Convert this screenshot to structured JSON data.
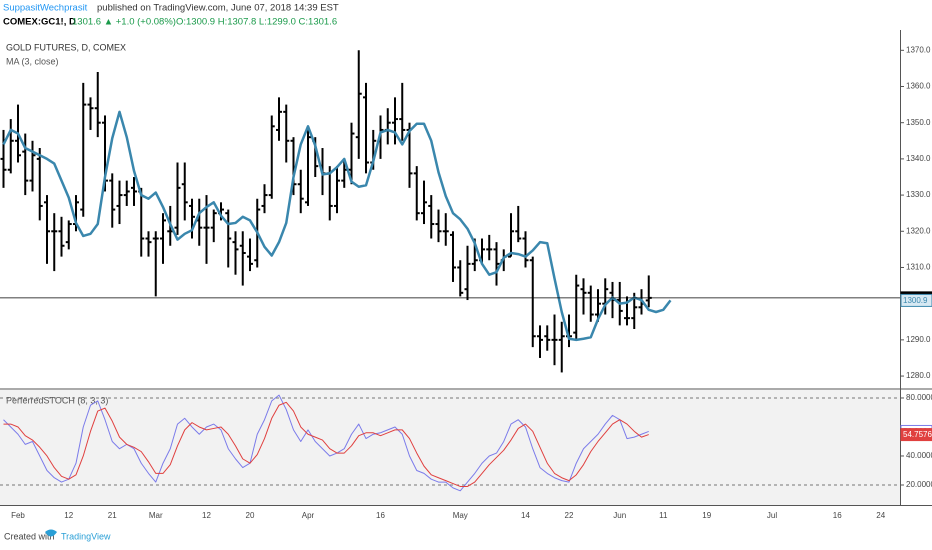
{
  "header": {
    "author": "SuppasitWechprasit",
    "published": "published on TradingView.com, June 07, 2018 14:39 EST",
    "symbol": "COMEX:GC1!, D",
    "change": "1301.6 ▲ +1.0 (+0.08%)",
    "ohlc": "O:1300.9 H:1307.8 L:1299.0 C:1301.6"
  },
  "chart_data": [
    {
      "type": "ohlc",
      "title": "GOLD FUTURES, D, COMEX",
      "color": "#000000",
      "categories": [
        null,
        null,
        "Feb",
        null,
        null,
        null,
        null,
        null,
        null,
        "12",
        null,
        null,
        null,
        null,
        null,
        "21",
        null,
        null,
        null,
        null,
        null,
        "Mar",
        null,
        null,
        null,
        null,
        null,
        null,
        "12",
        null,
        null,
        null,
        null,
        null,
        "20",
        null,
        null,
        null,
        null,
        null,
        null,
        null,
        "Apr",
        null,
        null,
        null,
        null,
        null,
        null,
        null,
        null,
        null,
        "16",
        null,
        null,
        null,
        null,
        null,
        null,
        null,
        null,
        null,
        null,
        "May",
        null,
        null,
        null,
        null,
        null,
        null,
        null,
        null,
        "14",
        null,
        null,
        null,
        null,
        null,
        "22",
        null,
        null,
        null,
        null,
        null,
        null,
        "Jun",
        null,
        null,
        null,
        null,
        null,
        "11",
        null,
        null,
        null,
        null,
        null,
        "19",
        null,
        null,
        null,
        null,
        null,
        null,
        null,
        null,
        "Jul",
        null,
        null,
        null,
        null,
        null,
        null,
        null,
        null,
        "16",
        null,
        null,
        null,
        null,
        null,
        "24"
      ],
      "open": [
        1340,
        1337,
        1345,
        1342,
        1334,
        1340,
        1328,
        1320,
        1320,
        1317,
        1322,
        1326,
        1355,
        1354,
        1350,
        1334,
        1327,
        1330,
        1332,
        1331,
        1318,
        1318,
        1318,
        1320,
        1321,
        1333,
        1327,
        1323,
        1321,
        1321,
        1325,
        1325,
        1317,
        1316,
        1313,
        1312,
        1327,
        1330,
        1348,
        1353,
        1345,
        1333,
        1328,
        1345,
        1338,
        1336,
        1327,
        1334,
        1337,
        1346,
        1357,
        1339,
        1345,
        1348,
        1350,
        1351,
        1348,
        1336,
        1325,
        1327,
        1322,
        1320,
        1319,
        1310,
        1304,
        1311,
        1312,
        1315,
        1315,
        1312,
        1313,
        1320,
        1318,
        1312,
        1291,
        1291,
        1290,
        1290,
        1291,
        1292,
        1304,
        1303,
        1297,
        1300,
        1303,
        1301,
        1296,
        1296,
        1299,
        1300.9,
        null,
        null,
        null,
        null,
        null,
        null,
        null,
        null,
        null,
        null,
        null,
        null,
        null,
        null,
        null,
        null,
        null,
        null,
        null,
        null,
        null,
        null,
        null,
        null,
        null,
        null,
        null,
        null,
        null,
        null,
        null,
        null
      ],
      "high": [
        1348,
        1351,
        1355,
        1347,
        1345,
        1343,
        1330,
        1325,
        1324,
        1323,
        1330,
        1361,
        1357,
        1364,
        1352,
        1336,
        1334,
        1334,
        1335,
        1332,
        1320,
        1320,
        1325,
        1327,
        1339,
        1339,
        1329,
        1329,
        1330,
        1326,
        1328,
        1326,
        1320,
        1320,
        1318,
        1329,
        1333,
        1352,
        1357,
        1355,
        1346,
        1337,
        1348,
        1346,
        1343,
        1338,
        1338,
        1340,
        1350,
        1370,
        1361,
        1348,
        1352,
        1354,
        1357,
        1361,
        1350,
        1338,
        1334,
        1330,
        1326,
        1325,
        1320,
        1312,
        1316,
        1318,
        1318,
        1319,
        1317,
        1315,
        1325,
        1327,
        1320,
        1313,
        1294,
        1294,
        1297,
        1295,
        1297,
        1308,
        1307,
        1305,
        1304,
        1307,
        1306,
        1306,
        1302,
        1303,
        1304,
        1307.8,
        null,
        null,
        null,
        null,
        null,
        null,
        null,
        null,
        null,
        null,
        null,
        null,
        null,
        null,
        null,
        null,
        null,
        null,
        null,
        null,
        null,
        null,
        null,
        null,
        null,
        null,
        null,
        null,
        null,
        null,
        null,
        null
      ],
      "low": [
        1332,
        1336,
        1339,
        1330,
        1331,
        1323,
        1311,
        1309,
        1313,
        1315,
        1320,
        1324,
        1348,
        1346,
        1331,
        1321,
        1322,
        1327,
        1327,
        1313,
        1313,
        1302,
        1311,
        1316,
        1319,
        1323,
        1318,
        1316,
        1311,
        1317,
        1323,
        1310,
        1308,
        1305,
        1309,
        1310,
        1325,
        1329,
        1345,
        1339,
        1330,
        1325,
        1327,
        1335,
        1330,
        1323,
        1325,
        1332,
        1333,
        1340,
        1336,
        1337,
        1340,
        1344,
        1344,
        1345,
        1332,
        1323,
        1322,
        1318,
        1317,
        1316,
        1306,
        1302,
        1301,
        1309,
        1311,
        1312,
        1305,
        1309,
        1313,
        1317,
        1310,
        1288,
        1285,
        1287,
        1283,
        1281,
        1288,
        1290,
        1297,
        1295,
        1295,
        1297,
        1296,
        1294,
        1294,
        1293,
        1297,
        1299,
        null,
        null,
        null,
        null,
        null,
        null,
        null,
        null,
        null,
        null,
        null,
        null,
        null,
        null,
        null,
        null,
        null,
        null,
        null,
        null,
        null,
        null,
        null,
        null,
        null,
        null,
        null,
        null,
        null,
        null,
        null,
        null
      ],
      "close": [
        1337,
        1345,
        1341,
        1334,
        1341,
        1327,
        1320,
        1320,
        1316,
        1322,
        1328,
        1355,
        1354,
        1350,
        1334,
        1326,
        1330,
        1331,
        1331,
        1318,
        1317,
        1318,
        1323,
        1320,
        1332,
        1328,
        1324,
        1321,
        1321,
        1325,
        1326,
        1318,
        1315,
        1314,
        1311,
        1326,
        1330,
        1349,
        1353,
        1345,
        1333,
        1329,
        1346,
        1338,
        1336,
        1327,
        1334,
        1337,
        1347,
        1358,
        1339,
        1345,
        1348,
        1350,
        1351,
        1348,
        1336,
        1325,
        1328,
        1322,
        1320,
        1320,
        1310,
        1303,
        1311,
        1312,
        1315,
        1315,
        1311,
        1313,
        1320,
        1318,
        1312,
        1291,
        1290,
        1290,
        1290,
        1291,
        1291,
        1305,
        1303,
        1297,
        1300,
        1304,
        1301,
        1298,
        1296,
        1299,
        1300,
        1301.6,
        null,
        null,
        null,
        null,
        null,
        null,
        null,
        null,
        null,
        null,
        null,
        null,
        null,
        null,
        null,
        null,
        null,
        null,
        null,
        null,
        null,
        null,
        null,
        null,
        null,
        null,
        null,
        null,
        null,
        null,
        null,
        null
      ],
      "series": [
        {
          "name": "MA (3, close)",
          "color": "#3a87ad",
          "values": [
            1344,
            1348,
            1347,
            1343,
            1342,
            1341,
            1340,
            1338.7,
            1334,
            1329.3,
            1322.3,
            1318.7,
            1319.3,
            1322,
            1335,
            1345.7,
            1353,
            1346,
            1336.7,
            1330,
            1329,
            1330.7,
            1326.7,
            1322,
            1317.7,
            1319.3,
            1320.3,
            1325,
            1326.7,
            1328,
            1324.3,
            1322,
            1322.3,
            1324,
            1323,
            1319.7,
            1315.7,
            1313.3,
            1317,
            1322.3,
            1335,
            1344,
            1349,
            1343.7,
            1335.7,
            1336,
            1337.7,
            1340,
            1333.7,
            1332.3,
            1332.7,
            1339.3,
            1347.3,
            1348,
            1347.3,
            1344,
            1347.7,
            1349.7,
            1349.7,
            1345,
            1336.3,
            1329.7,
            1325,
            1323.3,
            1320.7,
            1316.7,
            1311,
            1308,
            1308.7,
            1312.7,
            1314,
            1313.7,
            1313,
            1314.7,
            1317,
            1316.7,
            1307,
            1297.7,
            1290.3,
            1290,
            1290.3,
            1290.7,
            1295.7,
            1299.7,
            1301.7,
            1300,
            1300.3,
            1301.7,
            1301,
            1298.3,
            1297.7,
            1298.3,
            1300.9,
            null,
            null,
            null,
            null,
            null,
            null,
            null,
            null,
            null,
            null,
            null,
            null,
            null,
            null,
            null,
            null,
            null,
            null,
            null,
            null,
            null,
            null,
            null,
            null,
            null,
            null,
            null,
            null,
            null
          ]
        }
      ],
      "ylim": [
        1276.7,
        1373.4
      ],
      "yticks": [
        {
          "value": 1280,
          "label": "1280.0"
        },
        {
          "value": 1290,
          "label": "1290.0"
        },
        {
          "value": 1300,
          "label": "1300.0"
        },
        {
          "value": 1310,
          "label": "1310.0"
        },
        {
          "value": 1320,
          "label": "1320.0"
        },
        {
          "value": 1330,
          "label": "1330.0"
        },
        {
          "value": 1340,
          "label": "1340.0"
        },
        {
          "value": 1350,
          "label": "1350.0"
        },
        {
          "value": 1360,
          "label": "1360.0"
        },
        {
          "value": 1370,
          "label": "1370.0"
        }
      ]
    },
    {
      "type": "line",
      "title": "PerferredSTOCH (8, 3, 3)",
      "series": [
        {
          "color": "#7b7bea",
          "values": [
            65,
            60,
            55,
            48,
            50,
            40,
            30,
            25,
            22,
            24,
            35,
            60,
            75,
            78,
            65,
            50,
            45,
            48,
            45,
            35,
            28,
            22,
            35,
            45,
            62,
            66,
            60,
            55,
            60,
            62,
            58,
            45,
            38,
            32,
            35,
            55,
            65,
            78,
            82,
            72,
            58,
            50,
            58,
            50,
            45,
            40,
            42,
            45,
            55,
            62,
            52,
            55,
            56,
            58,
            60,
            55,
            40,
            30,
            28,
            24,
            22,
            22,
            18,
            16,
            22,
            28,
            35,
            40,
            42,
            50,
            62,
            65,
            60,
            45,
            32,
            28,
            25,
            23,
            22,
            35,
            45,
            50,
            55,
            62,
            68,
            65,
            52,
            53,
            55,
            56.9093
          ]
        },
        {
          "color": "#e0403f",
          "values": [
            62,
            62,
            60,
            54,
            51,
            46,
            40,
            32,
            26,
            24,
            27,
            40,
            57,
            71,
            73,
            64,
            53,
            48,
            46,
            43,
            36,
            28,
            28,
            34,
            47,
            58,
            63,
            60,
            58,
            59,
            60,
            55,
            47,
            38,
            35,
            41,
            52,
            66,
            75,
            77,
            71,
            60,
            55,
            53,
            51,
            45,
            42,
            42,
            47,
            54,
            56,
            56,
            54,
            56,
            58,
            58,
            52,
            42,
            33,
            27,
            25,
            23,
            21,
            19,
            19,
            22,
            28,
            34,
            39,
            44,
            51,
            59,
            62,
            57,
            46,
            35,
            28,
            25,
            23,
            27,
            34,
            43,
            50,
            56,
            62,
            65,
            62,
            57,
            53,
            54.7576
          ]
        }
      ],
      "bands": [
        80,
        20
      ],
      "ylim": [
        6.2,
        85.5
      ],
      "yticks": [
        {
          "value": 80,
          "label": "80.0000"
        },
        {
          "value": 40,
          "label": "40.0000"
        },
        {
          "value": 20,
          "label": "20.0000"
        }
      ]
    }
  ],
  "footer": {
    "created": "Created with",
    "brand": "TradingView"
  }
}
